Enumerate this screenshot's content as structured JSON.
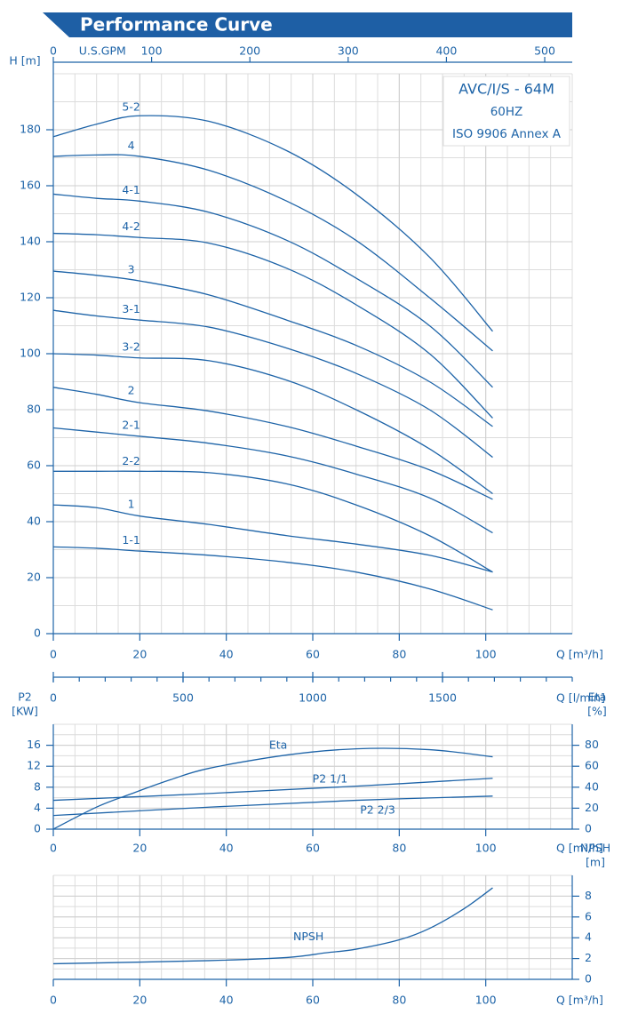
{
  "title": "Performance Curve",
  "chart_data": [
    {
      "type": "line",
      "color": "#1e64a8",
      "grid": true,
      "annotations": [
        "AVC/I/S - 64M",
        "60HZ",
        "ISO 9906 Annex A"
      ],
      "x_label": "Q [m³/h]",
      "xlim": [
        0,
        120
      ],
      "xticks": [
        0,
        20,
        40,
        60,
        80,
        100
      ],
      "x2_label": "U.S.GPM",
      "x2lim": [
        0,
        528
      ],
      "x2ticks": [
        0,
        100,
        200,
        300,
        400,
        500
      ],
      "y_label": [
        "H [m]"
      ],
      "ylim": [
        0,
        200
      ],
      "yticks": [
        0,
        20,
        40,
        60,
        80,
        100,
        120,
        140,
        160,
        180
      ],
      "x": [
        0,
        10,
        20,
        36,
        54,
        70,
        87,
        101.6
      ],
      "series": [
        {
          "name": "5-2",
          "values": [
            177.5,
            182,
            185,
            183,
            172.5,
            157,
            134.5,
            108
          ]
        },
        {
          "name": "4",
          "values": [
            170.5,
            171,
            170.5,
            165.5,
            154.5,
            140.5,
            120,
            101
          ]
        },
        {
          "name": "4-1",
          "values": [
            157,
            155.5,
            154.5,
            150.5,
            140.5,
            127,
            110,
            88
          ]
        },
        {
          "name": "4-2",
          "values": [
            143,
            142.5,
            141.5,
            139.5,
            130.5,
            117.5,
            100,
            77
          ]
        },
        {
          "name": "3",
          "values": [
            129.5,
            128,
            126,
            121,
            112,
            103,
            90,
            74
          ]
        },
        {
          "name": "3-1",
          "values": [
            115.5,
            113.5,
            112,
            109.5,
            102,
            93,
            80,
            63
          ]
        },
        {
          "name": "3-2",
          "values": [
            100,
            99.5,
            98.5,
            97.5,
            90.5,
            80,
            66,
            50
          ]
        },
        {
          "name": "2",
          "values": [
            88,
            85.5,
            82.5,
            79.5,
            74,
            67,
            58.5,
            48
          ]
        },
        {
          "name": "2-1",
          "values": [
            73.5,
            72,
            70.5,
            68,
            63.5,
            57,
            48.5,
            36
          ]
        },
        {
          "name": "2-2",
          "values": [
            58,
            58,
            58,
            57.5,
            53.5,
            46,
            35,
            22
          ]
        },
        {
          "name": "1",
          "values": [
            46,
            45,
            42,
            39,
            35,
            32,
            28,
            22
          ]
        },
        {
          "name": "1-1",
          "values": [
            31,
            30.5,
            29.5,
            28,
            25.5,
            22,
            16,
            8.5
          ]
        }
      ]
    },
    {
      "type": "axis",
      "x_label": "Q [l/min]",
      "xlim": [
        0,
        2000
      ],
      "xticks": [
        0,
        500,
        1000,
        1500
      ]
    },
    {
      "type": "line",
      "color": "#1e64a8",
      "grid": true,
      "x_label": "Q [m³/h]",
      "xlim": [
        0,
        120
      ],
      "xticks": [
        0,
        20,
        40,
        60,
        80,
        100
      ],
      "y_label": [
        "P2",
        "[KW]"
      ],
      "ylim": [
        0,
        20
      ],
      "yticks": [
        0,
        4,
        8,
        12,
        16
      ],
      "y2_label": [
        "Eta",
        "[%]"
      ],
      "y2lim": [
        0,
        100
      ],
      "y2ticks": [
        0,
        20,
        40,
        60,
        80
      ],
      "series": [
        {
          "name": "Eta",
          "axis": "y2",
          "x": [
            0,
            10,
            18,
            27,
            36,
            54,
            70,
            87,
            101.6
          ],
          "values": [
            0,
            21,
            33.7,
            47,
            58,
            70.7,
            76.6,
            75.8,
            69
          ]
        },
        {
          "name": "P2 1/1",
          "x": [
            0,
            36,
            70,
            101.6
          ],
          "values": [
            5.5,
            6.8,
            8.2,
            9.7
          ]
        },
        {
          "name": "P2 2/3",
          "x": [
            0,
            36,
            70,
            101.6
          ],
          "values": [
            2.6,
            4.2,
            5.5,
            6.3
          ]
        }
      ]
    },
    {
      "type": "line",
      "color": "#1e64a8",
      "grid": true,
      "y_side": "right",
      "x_label": "Q [m³/h]",
      "xlim": [
        0,
        120
      ],
      "xticks": [
        0,
        20,
        40,
        60,
        80,
        100
      ],
      "y_label": [
        "NPSH",
        "[m]"
      ],
      "ylim": [
        0,
        10
      ],
      "yticks": [
        0,
        2,
        4,
        6,
        8
      ],
      "series": [
        {
          "name": "NPSH",
          "x": [
            0,
            36,
            54,
            63,
            70,
            80,
            87,
            95,
            101.6
          ],
          "values": [
            1.5,
            1.8,
            2.1,
            2.55,
            2.9,
            3.8,
            4.9,
            6.8,
            8.8
          ]
        }
      ]
    }
  ]
}
